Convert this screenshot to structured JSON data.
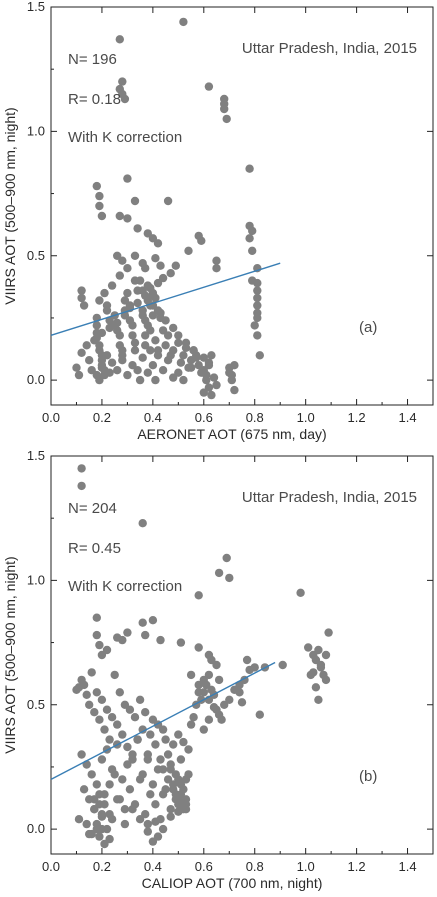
{
  "chart_data": [
    {
      "type": "scatter",
      "panel_label": "(a)",
      "title": "",
      "xlabel": "AERONET AOT (675 nm, day)",
      "ylabel": "VIIRS AOT (500–900 nm, night)",
      "xlim": [
        0.0,
        1.5
      ],
      "ylim": [
        -0.1,
        1.5
      ],
      "xticks": [
        "0.0",
        "0.2",
        "0.4",
        "0.6",
        "0.8",
        "1.0",
        "1.2",
        "1.4"
      ],
      "yticks": [
        "0.0",
        "0.5",
        "1.0",
        "1.5"
      ],
      "annotations": {
        "n": "N= 196",
        "r": "R= 0.18",
        "correction": "With K correction",
        "location": "Uttar Pradesh, India, 2015"
      },
      "colors": {
        "points": "#808080",
        "fit_line": "#3a7fb5"
      },
      "fit_line": {
        "x": [
          0.0,
          0.9
        ],
        "y": [
          0.18,
          0.47
        ]
      },
      "points": {
        "x": [
          0.52,
          0.27,
          0.28,
          0.27,
          0.28,
          0.29,
          0.62,
          0.68,
          0.68,
          0.68,
          0.69,
          0.78,
          0.18,
          0.3,
          0.19,
          0.19,
          0.2,
          0.27,
          0.33,
          0.46,
          0.78,
          0.79,
          0.78,
          0.79,
          0.79,
          0.58,
          0.59,
          0.65,
          0.65,
          0.3,
          0.34,
          0.38,
          0.4,
          0.42,
          0.26,
          0.28,
          0.33,
          0.36,
          0.37,
          0.41,
          0.43,
          0.81,
          0.81,
          0.81,
          0.81,
          0.81,
          0.81,
          0.81,
          0.12,
          0.12,
          0.13,
          0.18,
          0.18,
          0.18,
          0.18,
          0.19,
          0.19,
          0.2,
          0.2,
          0.2,
          0.21,
          0.21,
          0.22,
          0.22,
          0.23,
          0.25,
          0.25,
          0.26,
          0.27,
          0.27,
          0.28,
          0.28,
          0.29,
          0.29,
          0.3,
          0.31,
          0.31,
          0.32,
          0.32,
          0.33,
          0.33,
          0.34,
          0.35,
          0.36,
          0.36,
          0.37,
          0.37,
          0.37,
          0.38,
          0.38,
          0.38,
          0.39,
          0.39,
          0.4,
          0.4,
          0.41,
          0.41,
          0.42,
          0.42,
          0.43,
          0.44,
          0.45,
          0.46,
          0.47,
          0.48,
          0.5,
          0.52,
          0.54,
          0.55,
          0.56,
          0.57,
          0.58,
          0.6,
          0.61,
          0.62,
          0.63,
          0.7,
          0.71,
          0.72,
          0.8,
          0.81,
          0.82,
          0.1,
          0.11,
          0.15,
          0.16,
          0.18,
          0.19,
          0.2,
          0.22,
          0.23,
          0.24,
          0.26,
          0.28,
          0.3,
          0.32,
          0.34,
          0.35,
          0.36,
          0.38,
          0.39,
          0.4,
          0.41,
          0.42,
          0.44,
          0.46,
          0.48,
          0.5,
          0.51,
          0.52,
          0.53,
          0.55,
          0.57,
          0.59,
          0.6,
          0.61,
          0.62,
          0.63,
          0.64,
          0.65,
          0.7,
          0.71,
          0.72,
          0.19,
          0.21,
          0.24,
          0.27,
          0.3,
          0.33,
          0.36,
          0.38,
          0.4,
          0.43,
          0.45,
          0.48,
          0.5,
          0.53,
          0.56,
          0.6,
          0.62,
          0.12,
          0.14,
          0.17,
          0.2,
          0.23,
          0.26,
          0.29,
          0.31,
          0.34,
          0.37,
          0.39,
          0.42,
          0.44,
          0.47,
          0.49,
          0.54
        ],
        "y": [
          1.44,
          1.37,
          1.2,
          1.17,
          1.15,
          1.13,
          1.18,
          1.13,
          1.11,
          1.09,
          1.05,
          0.85,
          0.78,
          0.81,
          0.74,
          0.7,
          0.66,
          0.66,
          0.72,
          0.72,
          0.62,
          0.6,
          0.57,
          0.52,
          0.4,
          0.58,
          0.56,
          0.48,
          0.45,
          0.65,
          0.61,
          0.59,
          0.57,
          0.55,
          0.5,
          0.48,
          0.5,
          0.47,
          0.45,
          0.49,
          0.46,
          0.45,
          0.39,
          0.36,
          0.33,
          0.3,
          0.27,
          0.25,
          0.36,
          0.33,
          0.3,
          0.25,
          0.22,
          0.19,
          0.17,
          0.14,
          0.12,
          0.1,
          0.08,
          0.06,
          0.04,
          0.02,
          0.3,
          0.28,
          0.24,
          0.26,
          0.22,
          0.2,
          0.18,
          0.14,
          0.12,
          0.1,
          0.32,
          0.28,
          0.35,
          0.3,
          0.24,
          0.22,
          0.18,
          0.15,
          0.12,
          0.36,
          0.4,
          0.28,
          0.26,
          0.24,
          0.18,
          0.14,
          0.38,
          0.32,
          0.22,
          0.3,
          0.2,
          0.35,
          0.26,
          0.33,
          0.16,
          0.28,
          0.12,
          0.25,
          0.2,
          0.14,
          0.18,
          0.1,
          0.12,
          0.15,
          0.1,
          0.05,
          0.08,
          0.12,
          0.1,
          0.06,
          0.04,
          0.02,
          0.07,
          0.1,
          0.05,
          0.02,
          0.06,
          0.22,
          0.18,
          0.1,
          0.05,
          0.02,
          0.08,
          0.04,
          0.02,
          0.0,
          0.05,
          0.1,
          0.03,
          0.07,
          0.04,
          0.08,
          0.02,
          0.06,
          0.04,
          0.0,
          0.09,
          0.03,
          0.12,
          0.06,
          0.0,
          0.1,
          0.04,
          0.08,
          0.01,
          0.03,
          0.07,
          0.0,
          0.13,
          0.05,
          0.09,
          0.03,
          -0.05,
          0.0,
          -0.03,
          -0.06,
          0.01,
          -0.02,
          0.03,
          0.0,
          -0.04,
          0.32,
          0.35,
          0.38,
          0.42,
          0.45,
          0.4,
          0.36,
          0.33,
          0.3,
          0.27,
          0.24,
          0.21,
          0.18,
          0.15,
          0.12,
          0.09,
          0.06,
          0.11,
          0.14,
          0.16,
          0.19,
          0.21,
          0.23,
          0.26,
          0.29,
          0.31,
          0.34,
          0.37,
          0.39,
          0.41,
          0.43,
          0.46,
          0.52
        ]
      }
    },
    {
      "type": "scatter",
      "panel_label": "(b)",
      "title": "",
      "xlabel": "CALIOP AOT (700 nm, night)",
      "ylabel": "VIIRS AOT (500–900 nm, night)",
      "xlim": [
        0.0,
        1.5
      ],
      "ylim": [
        -0.1,
        1.5
      ],
      "xticks": [
        "0.0",
        "0.2",
        "0.4",
        "0.6",
        "0.8",
        "1.0",
        "1.2",
        "1.4"
      ],
      "yticks": [
        "0.0",
        "0.5",
        "1.0",
        "1.5"
      ],
      "annotations": {
        "n": "N= 204",
        "r": "R= 0.45",
        "correction": "With K correction",
        "location": "Uttar Pradesh, India, 2015"
      },
      "colors": {
        "points": "#808080",
        "fit_line": "#3a7fb5"
      },
      "fit_line": {
        "x": [
          0.0,
          0.88
        ],
        "y": [
          0.2,
          0.67
        ]
      },
      "points": {
        "x": [
          0.12,
          0.12,
          0.36,
          0.69,
          0.66,
          0.7,
          0.98,
          0.58,
          0.4,
          0.36,
          0.18,
          0.3,
          0.26,
          0.18,
          0.19,
          0.2,
          0.22,
          0.28,
          0.37,
          0.43,
          0.51,
          0.58,
          0.62,
          0.63,
          0.65,
          0.77,
          0.8,
          0.84,
          0.91,
          1.01,
          1.03,
          1.04,
          1.05,
          1.06,
          1.07,
          1.08,
          1.09,
          1.03,
          1.04,
          1.06,
          1.08,
          1.02,
          1.05,
          0.74,
          0.75,
          0.82,
          0.55,
          0.58,
          0.6,
          0.62,
          0.64,
          0.66,
          0.1,
          0.11,
          0.12,
          0.13,
          0.14,
          0.15,
          0.16,
          0.17,
          0.18,
          0.19,
          0.2,
          0.21,
          0.22,
          0.23,
          0.24,
          0.25,
          0.26,
          0.27,
          0.28,
          0.29,
          0.3,
          0.31,
          0.32,
          0.33,
          0.34,
          0.35,
          0.36,
          0.37,
          0.38,
          0.39,
          0.4,
          0.41,
          0.42,
          0.43,
          0.44,
          0.45,
          0.46,
          0.47,
          0.48,
          0.49,
          0.5,
          0.51,
          0.52,
          0.53,
          0.54,
          0.55,
          0.56,
          0.57,
          0.58,
          0.59,
          0.6,
          0.61,
          0.62,
          0.63,
          0.64,
          0.65,
          0.66,
          0.67,
          0.68,
          0.7,
          0.72,
          0.74,
          0.76,
          0.78,
          0.12,
          0.14,
          0.16,
          0.18,
          0.2,
          0.22,
          0.24,
          0.26,
          0.28,
          0.3,
          0.32,
          0.34,
          0.36,
          0.38,
          0.4,
          0.42,
          0.44,
          0.46,
          0.48,
          0.5,
          0.52,
          0.13,
          0.15,
          0.17,
          0.19,
          0.21,
          0.23,
          0.25,
          0.27,
          0.29,
          0.31,
          0.33,
          0.35,
          0.37,
          0.39,
          0.41,
          0.43,
          0.45,
          0.47,
          0.49,
          0.51,
          0.53,
          0.11,
          0.14,
          0.17,
          0.2,
          0.23,
          0.26,
          0.29,
          0.32,
          0.35,
          0.38,
          0.41,
          0.44,
          0.47,
          0.5,
          0.53,
          0.16,
          0.18,
          0.2,
          0.22,
          0.24,
          0.19,
          0.21,
          0.17,
          0.48,
          0.5,
          0.52,
          0.54,
          0.49,
          0.51,
          0.53,
          0.47,
          0.5,
          0.52,
          0.19,
          0.21,
          0.23,
          0.2,
          0.18,
          0.15,
          0.4,
          0.42,
          0.38,
          0.44,
          0.6,
          0.62
        ],
        "y": [
          1.45,
          1.38,
          1.23,
          1.09,
          1.03,
          1.01,
          0.95,
          0.94,
          0.84,
          0.83,
          0.85,
          0.79,
          0.77,
          0.78,
          0.74,
          0.7,
          0.72,
          0.76,
          0.78,
          0.76,
          0.75,
          0.73,
          0.7,
          0.68,
          0.66,
          0.68,
          0.65,
          0.65,
          0.66,
          0.73,
          0.7,
          0.68,
          0.72,
          0.65,
          0.62,
          0.6,
          0.79,
          0.63,
          0.57,
          0.66,
          0.7,
          0.62,
          0.52,
          0.55,
          0.51,
          0.46,
          0.62,
          0.58,
          0.55,
          0.52,
          0.49,
          0.6,
          0.56,
          0.57,
          0.6,
          0.58,
          0.54,
          0.5,
          0.63,
          0.47,
          0.55,
          0.44,
          0.52,
          0.4,
          0.48,
          0.36,
          0.45,
          0.62,
          0.42,
          0.55,
          0.38,
          0.5,
          0.33,
          0.48,
          0.28,
          0.45,
          0.36,
          0.52,
          0.4,
          0.47,
          0.3,
          0.38,
          0.44,
          0.34,
          0.42,
          0.28,
          0.4,
          0.36,
          0.3,
          0.26,
          0.34,
          0.22,
          0.38,
          0.28,
          0.35,
          0.2,
          0.32,
          0.42,
          0.45,
          0.5,
          0.55,
          0.52,
          0.6,
          0.58,
          0.62,
          0.56,
          0.54,
          0.48,
          0.46,
          0.44,
          0.5,
          0.52,
          0.56,
          0.58,
          0.6,
          0.64,
          0.3,
          0.26,
          0.22,
          0.18,
          0.28,
          0.32,
          0.24,
          0.34,
          0.2,
          0.26,
          0.3,
          0.36,
          0.22,
          0.28,
          0.18,
          0.24,
          0.14,
          0.2,
          0.16,
          0.12,
          0.1,
          0.16,
          0.12,
          0.08,
          0.14,
          0.1,
          0.18,
          0.22,
          0.12,
          0.08,
          0.16,
          0.1,
          0.2,
          0.06,
          0.14,
          0.1,
          0.04,
          0.16,
          0.08,
          0.12,
          0.14,
          0.1,
          0.04,
          0.02,
          0.08,
          0.0,
          0.06,
          0.12,
          0.02,
          0.08,
          0.04,
          -0.01,
          0.03,
          0.0,
          0.05,
          0.07,
          0.08,
          -0.02,
          0.02,
          0.06,
          0.0,
          0.04,
          0.1,
          0.14,
          0.12,
          0.18,
          0.2,
          0.16,
          0.22,
          0.14,
          0.18,
          0.12,
          0.24,
          0.1,
          0.08,
          -0.03,
          -0.06,
          -0.04,
          0.05,
          0.0,
          -0.02,
          -0.05,
          -0.03,
          0.02,
          0.24,
          0.4,
          0.44
        ]
      }
    }
  ]
}
